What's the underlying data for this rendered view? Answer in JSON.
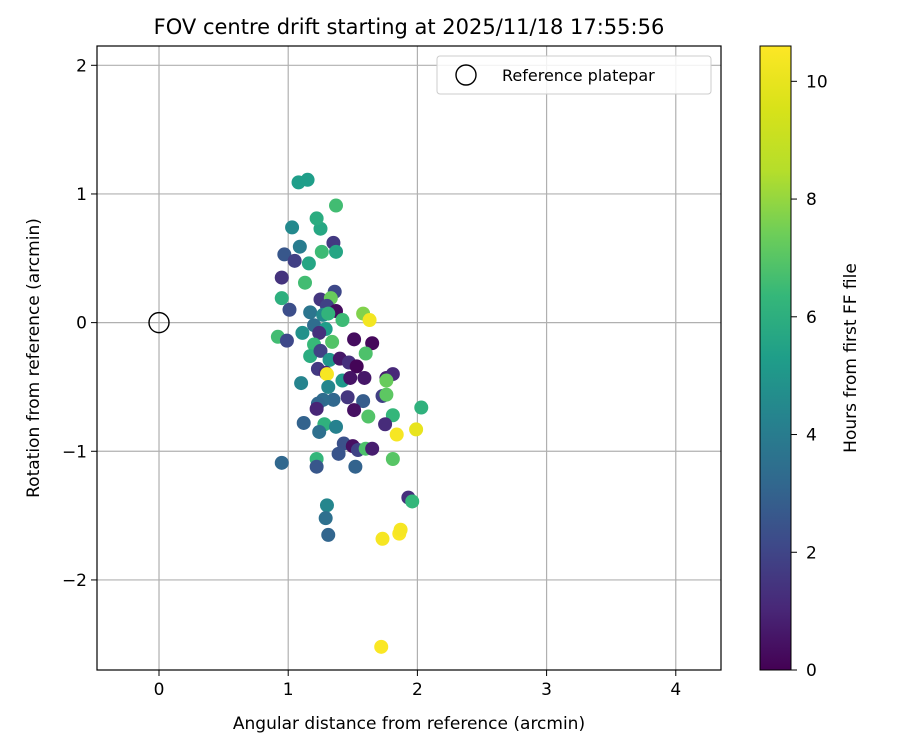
{
  "chart_data": {
    "type": "scatter",
    "title": "FOV centre drift starting at 2025/11/18 17:55:56",
    "xlabel": "Angular distance from reference (arcmin)",
    "ylabel": "Rotation from reference (arcmin)",
    "xlim": [
      -0.48,
      4.35
    ],
    "ylim": [
      -2.7,
      2.15
    ],
    "xticks": [
      0,
      1,
      2,
      3,
      4
    ],
    "yticks": [
      -2,
      -1,
      0,
      1,
      2
    ],
    "xtick_labels": [
      "0",
      "1",
      "2",
      "3",
      "4"
    ],
    "ytick_labels": [
      "−2",
      "−1",
      "0",
      "1",
      "2"
    ],
    "grid": true,
    "legend": {
      "position": "upper-right",
      "entries": [
        "Reference platepar"
      ]
    },
    "reference_point": {
      "x": 0,
      "y": 0,
      "label": "Reference platepar"
    },
    "colorbar": {
      "label": "Hours from first FF file",
      "range": [
        0,
        10.6
      ],
      "ticks": [
        0,
        2,
        4,
        6,
        8,
        10
      ],
      "tick_labels": [
        "0",
        "2",
        "4",
        "6",
        "8",
        "10"
      ],
      "colormap": "viridis"
    },
    "series": [
      {
        "name": "FOV centre drift",
        "points": [
          [
            1.08,
            1.09,
            5.3
          ],
          [
            1.15,
            1.11,
            5.3
          ],
          [
            1.37,
            0.91,
            6.6
          ],
          [
            1.03,
            0.74,
            4.5
          ],
          [
            1.25,
            0.73,
            5.7
          ],
          [
            1.22,
            0.81,
            5.9
          ],
          [
            1.09,
            0.59,
            4.0
          ],
          [
            1.35,
            0.62,
            1.6
          ],
          [
            1.26,
            0.55,
            6.5
          ],
          [
            1.37,
            0.55,
            5.6
          ],
          [
            0.97,
            0.53,
            2.6
          ],
          [
            1.05,
            0.48,
            1.8
          ],
          [
            1.16,
            0.46,
            5.6
          ],
          [
            0.95,
            0.35,
            1.4
          ],
          [
            1.13,
            0.31,
            6.6
          ],
          [
            1.36,
            0.24,
            2.1
          ],
          [
            0.95,
            0.19,
            6.0
          ],
          [
            1.25,
            0.18,
            1.5
          ],
          [
            1.33,
            0.19,
            7.3
          ],
          [
            1.01,
            0.1,
            2.3
          ],
          [
            1.3,
            0.13,
            1.9
          ],
          [
            1.37,
            0.09,
            0.3
          ],
          [
            1.17,
            0.08,
            3.7
          ],
          [
            1.27,
            0.06,
            4.5
          ],
          [
            1.31,
            0.07,
            6.2
          ],
          [
            1.58,
            0.07,
            7.7
          ],
          [
            1.42,
            0.02,
            6.5
          ],
          [
            1.63,
            0.02,
            10.3
          ],
          [
            1.2,
            -0.02,
            3.4
          ],
          [
            1.29,
            -0.05,
            5.3
          ],
          [
            1.11,
            -0.08,
            4.8
          ],
          [
            1.24,
            -0.08,
            1.3
          ],
          [
            0.92,
            -0.11,
            6.6
          ],
          [
            0.99,
            -0.14,
            2.1
          ],
          [
            1.2,
            -0.17,
            6.4
          ],
          [
            1.34,
            -0.15,
            6.9
          ],
          [
            1.51,
            -0.13,
            0.3
          ],
          [
            1.65,
            -0.16,
            0.2
          ],
          [
            1.6,
            -0.24,
            6.8
          ],
          [
            1.17,
            -0.26,
            5.9
          ],
          [
            1.25,
            -0.22,
            1.9
          ],
          [
            1.32,
            -0.29,
            5.0
          ],
          [
            1.4,
            -0.28,
            0.6
          ],
          [
            1.47,
            -0.31,
            1.3
          ],
          [
            1.53,
            -0.34,
            0.1
          ],
          [
            1.23,
            -0.36,
            1.6
          ],
          [
            1.29,
            -0.39,
            1.1
          ],
          [
            1.3,
            -0.4,
            10.4
          ],
          [
            1.42,
            -0.45,
            5.1
          ],
          [
            1.48,
            -0.43,
            0.5
          ],
          [
            1.59,
            -0.43,
            0.6
          ],
          [
            1.76,
            -0.43,
            0.8
          ],
          [
            1.81,
            -0.4,
            1.1
          ],
          [
            1.76,
            -0.45,
            7.3
          ],
          [
            1.1,
            -0.47,
            4.3
          ],
          [
            1.31,
            -0.5,
            4.4
          ],
          [
            1.46,
            -0.58,
            1.5
          ],
          [
            1.58,
            -0.61,
            2.8
          ],
          [
            1.73,
            -0.57,
            1.8
          ],
          [
            1.76,
            -0.56,
            7.1
          ],
          [
            1.35,
            -0.6,
            3.2
          ],
          [
            1.27,
            -0.6,
            3.4
          ],
          [
            1.23,
            -0.63,
            3.2
          ],
          [
            1.22,
            -0.67,
            1.0
          ],
          [
            1.51,
            -0.68,
            0.4
          ],
          [
            1.62,
            -0.73,
            6.9
          ],
          [
            1.81,
            -0.72,
            6.3
          ],
          [
            2.03,
            -0.66,
            6.1
          ],
          [
            1.12,
            -0.78,
            3.0
          ],
          [
            1.28,
            -0.79,
            6.1
          ],
          [
            1.37,
            -0.81,
            4.2
          ],
          [
            1.75,
            -0.79,
            1.2
          ],
          [
            1.24,
            -0.85,
            3.5
          ],
          [
            1.84,
            -0.87,
            10.4
          ],
          [
            1.99,
            -0.83,
            10.0
          ],
          [
            1.43,
            -0.94,
            2.4
          ],
          [
            1.5,
            -0.96,
            0.4
          ],
          [
            1.54,
            -0.99,
            1.9
          ],
          [
            1.6,
            -0.98,
            6.8
          ],
          [
            1.65,
            -0.98,
            0.8
          ],
          [
            1.39,
            -1.02,
            2.5
          ],
          [
            1.22,
            -1.06,
            6.3
          ],
          [
            1.22,
            -1.12,
            2.6
          ],
          [
            1.52,
            -1.12,
            3.0
          ],
          [
            1.81,
            -1.06,
            7.0
          ],
          [
            0.95,
            -1.09,
            3.2
          ],
          [
            1.93,
            -1.36,
            1.3
          ],
          [
            1.96,
            -1.39,
            6.3
          ],
          [
            1.3,
            -1.42,
            4.4
          ],
          [
            1.29,
            -1.52,
            3.5
          ],
          [
            1.31,
            -1.65,
            3.1
          ],
          [
            1.73,
            -1.68,
            10.4
          ],
          [
            1.86,
            -1.64,
            10.5
          ],
          [
            1.87,
            -1.61,
            10.4
          ],
          [
            1.72,
            -2.52,
            10.5
          ]
        ]
      }
    ]
  }
}
